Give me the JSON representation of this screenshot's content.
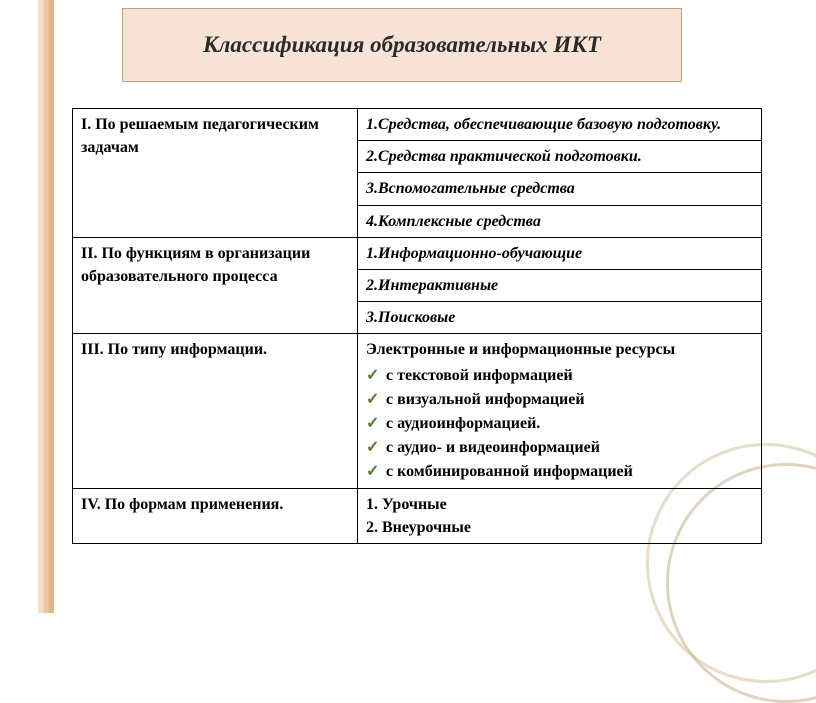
{
  "title": "Классификация образовательных ИКТ",
  "section1": {
    "heading": "I. По решаемым педагогическим задачам",
    "item1": "1.Средства, обеспечивающие базовую подготовку.",
    "item2": "2.Средства практической подготовки.",
    "item3": "3.Вспомогательные средства",
    "item4": "4.Комплексные средства"
  },
  "section2": {
    "heading": "II. По функциям в организации образовательного процесса",
    "item1": "1.Информационно-обучающие",
    "item2": "2.Интерактивные",
    "item3": "3.Поисковые"
  },
  "section3": {
    "heading": "III. По типу информации.",
    "intro": "Электронные и информационные ресурсы",
    "b1": " с текстовой информацией",
    "b2": "с визуальной информацией",
    "b3": "с аудиоинформацией.",
    "b4": "с аудио- и видеоинформацией",
    "b5": "с комбинированной информацией"
  },
  "section4": {
    "heading": "IV. По формам применения.",
    "item1": "1. Урочные",
    "item2": "2. Внеурочные"
  },
  "colors": {
    "title_bg": "#f7e4d6",
    "title_border": "#bda47f",
    "check_color": "#4a7a2b",
    "decor1": "#f5dcc9",
    "decor2": "#eec7a8",
    "decor3": "#e6b48a"
  }
}
